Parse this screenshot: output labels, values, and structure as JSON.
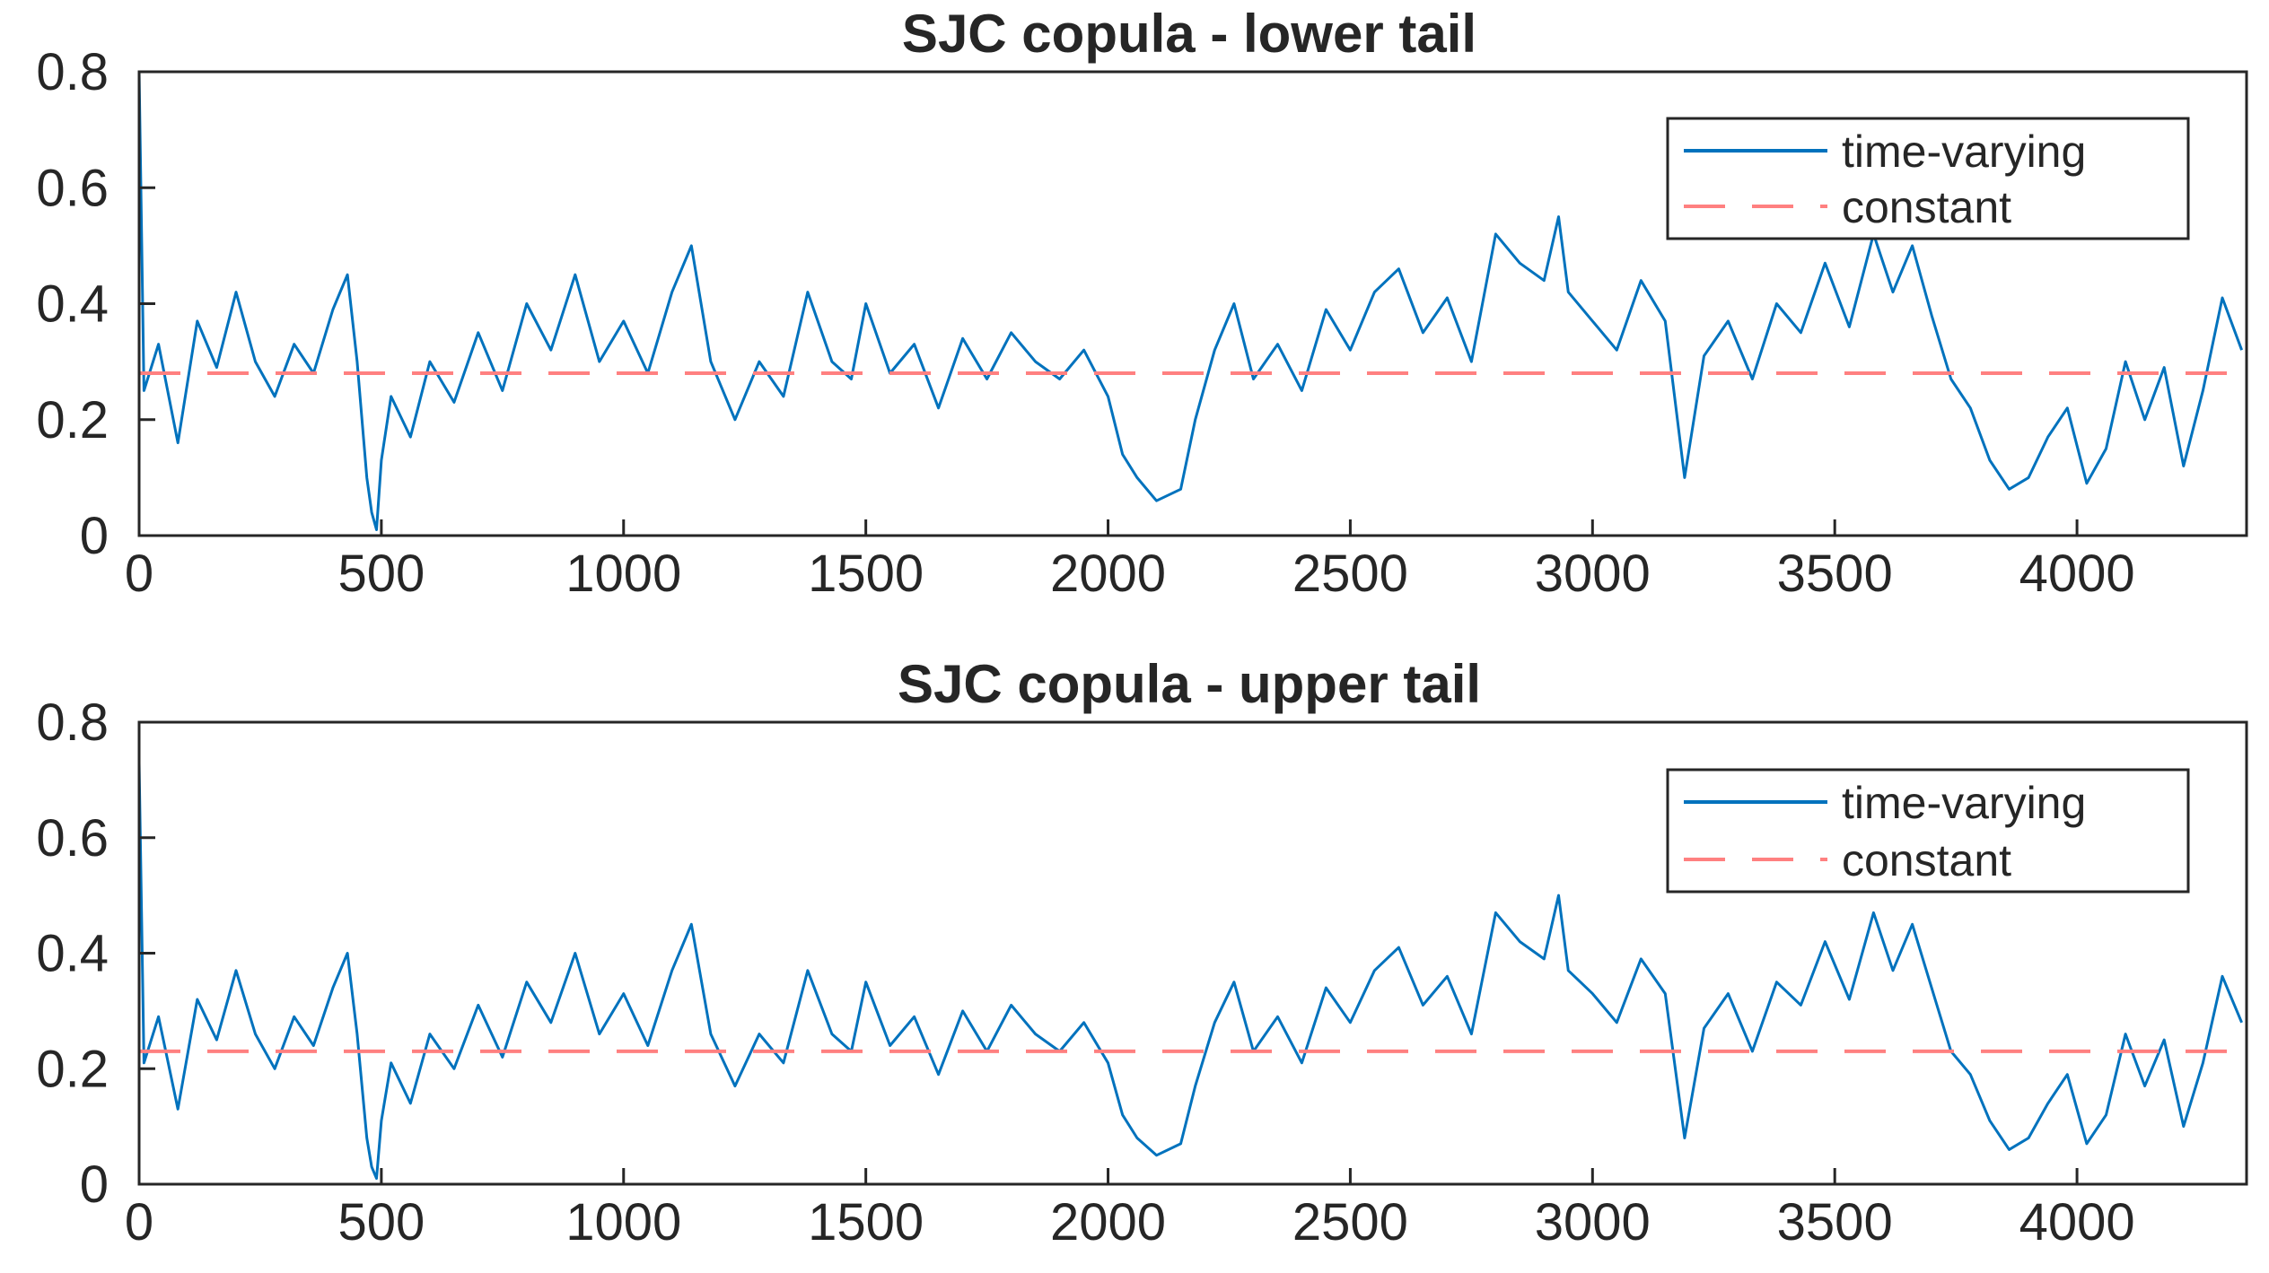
{
  "chart_data": [
    {
      "type": "line",
      "title": "SJC copula - lower tail",
      "xlabel": "",
      "ylabel": "",
      "xlim": [
        0,
        4350
      ],
      "ylim": [
        0,
        0.8
      ],
      "xticks": [
        0,
        500,
        1000,
        1500,
        2000,
        2500,
        3000,
        3500,
        4000
      ],
      "xtick_labels": [
        "0",
        "500",
        "1000",
        "1500",
        "2000",
        "2500",
        "3000",
        "3500",
        "4000"
      ],
      "yticks": [
        0,
        0.2,
        0.4,
        0.6,
        0.8
      ],
      "ytick_labels": [
        "0",
        "0.2",
        "0.4",
        "0.6",
        "0.8"
      ],
      "grid": false,
      "legend_position": "top-right",
      "series": [
        {
          "name": "time-varying",
          "color": "#0072BD",
          "style": "solid",
          "x": [
            0,
            10,
            40,
            80,
            120,
            160,
            200,
            240,
            280,
            320,
            360,
            400,
            430,
            450,
            470,
            480,
            490,
            500,
            520,
            560,
            600,
            650,
            700,
            750,
            800,
            850,
            900,
            950,
            1000,
            1050,
            1100,
            1140,
            1180,
            1230,
            1280,
            1330,
            1380,
            1430,
            1470,
            1500,
            1550,
            1600,
            1650,
            1700,
            1750,
            1800,
            1850,
            1900,
            1950,
            2000,
            2030,
            2060,
            2100,
            2150,
            2180,
            2220,
            2260,
            2300,
            2350,
            2400,
            2450,
            2500,
            2550,
            2600,
            2650,
            2700,
            2750,
            2800,
            2850,
            2900,
            2930,
            2950,
            3000,
            3050,
            3100,
            3150,
            3190,
            3230,
            3280,
            3330,
            3380,
            3430,
            3480,
            3530,
            3580,
            3620,
            3660,
            3700,
            3740,
            3780,
            3820,
            3860,
            3900,
            3940,
            3980,
            4020,
            4060,
            4100,
            4140,
            4180,
            4220,
            4260,
            4300,
            4340
          ],
          "y": [
            0.8,
            0.25,
            0.33,
            0.16,
            0.37,
            0.29,
            0.42,
            0.3,
            0.24,
            0.33,
            0.28,
            0.39,
            0.45,
            0.3,
            0.1,
            0.04,
            0.01,
            0.13,
            0.24,
            0.17,
            0.3,
            0.23,
            0.35,
            0.25,
            0.4,
            0.32,
            0.45,
            0.3,
            0.37,
            0.28,
            0.42,
            0.5,
            0.3,
            0.2,
            0.3,
            0.24,
            0.42,
            0.3,
            0.27,
            0.4,
            0.28,
            0.33,
            0.22,
            0.34,
            0.27,
            0.35,
            0.3,
            0.27,
            0.32,
            0.24,
            0.14,
            0.1,
            0.06,
            0.08,
            0.2,
            0.32,
            0.4,
            0.27,
            0.33,
            0.25,
            0.39,
            0.32,
            0.42,
            0.46,
            0.35,
            0.41,
            0.3,
            0.52,
            0.47,
            0.44,
            0.55,
            0.42,
            0.37,
            0.32,
            0.44,
            0.37,
            0.1,
            0.31,
            0.37,
            0.27,
            0.4,
            0.35,
            0.47,
            0.36,
            0.52,
            0.42,
            0.5,
            0.38,
            0.27,
            0.22,
            0.13,
            0.08,
            0.1,
            0.17,
            0.22,
            0.09,
            0.15,
            0.3,
            0.2,
            0.29,
            0.12,
            0.25,
            0.41,
            0.32
          ]
        },
        {
          "name": "constant",
          "color": "#FF8080",
          "style": "dashed",
          "x": [
            0,
            4350
          ],
          "y": [
            0.28,
            0.28
          ]
        }
      ],
      "legend": [
        "time-varying",
        "constant"
      ]
    },
    {
      "type": "line",
      "title": "SJC copula - upper tail",
      "xlabel": "",
      "ylabel": "",
      "xlim": [
        0,
        4350
      ],
      "ylim": [
        0,
        0.8
      ],
      "xticks": [
        0,
        500,
        1000,
        1500,
        2000,
        2500,
        3000,
        3500,
        4000
      ],
      "xtick_labels": [
        "0",
        "500",
        "1000",
        "1500",
        "2000",
        "2500",
        "3000",
        "3500",
        "4000"
      ],
      "yticks": [
        0,
        0.2,
        0.4,
        0.6,
        0.8
      ],
      "ytick_labels": [
        "0",
        "0.2",
        "0.4",
        "0.6",
        "0.8"
      ],
      "grid": false,
      "legend_position": "top-right",
      "series": [
        {
          "name": "time-varying",
          "color": "#0072BD",
          "style": "solid",
          "x": [
            0,
            10,
            40,
            80,
            120,
            160,
            200,
            240,
            280,
            320,
            360,
            400,
            430,
            450,
            470,
            480,
            490,
            500,
            520,
            560,
            600,
            650,
            700,
            750,
            800,
            850,
            900,
            950,
            1000,
            1050,
            1100,
            1140,
            1180,
            1230,
            1280,
            1330,
            1380,
            1430,
            1470,
            1500,
            1550,
            1600,
            1650,
            1700,
            1750,
            1800,
            1850,
            1900,
            1950,
            2000,
            2030,
            2060,
            2100,
            2150,
            2180,
            2220,
            2260,
            2300,
            2350,
            2400,
            2450,
            2500,
            2550,
            2600,
            2650,
            2700,
            2750,
            2800,
            2850,
            2900,
            2930,
            2950,
            3000,
            3050,
            3100,
            3150,
            3190,
            3230,
            3280,
            3330,
            3380,
            3430,
            3480,
            3530,
            3580,
            3620,
            3660,
            3700,
            3740,
            3780,
            3820,
            3860,
            3900,
            3940,
            3980,
            4020,
            4060,
            4100,
            4140,
            4180,
            4220,
            4260,
            4300,
            4340
          ],
          "y": [
            0.73,
            0.21,
            0.29,
            0.13,
            0.32,
            0.25,
            0.37,
            0.26,
            0.2,
            0.29,
            0.24,
            0.34,
            0.4,
            0.26,
            0.08,
            0.03,
            0.01,
            0.11,
            0.21,
            0.14,
            0.26,
            0.2,
            0.31,
            0.22,
            0.35,
            0.28,
            0.4,
            0.26,
            0.33,
            0.24,
            0.37,
            0.45,
            0.26,
            0.17,
            0.26,
            0.21,
            0.37,
            0.26,
            0.23,
            0.35,
            0.24,
            0.29,
            0.19,
            0.3,
            0.23,
            0.31,
            0.26,
            0.23,
            0.28,
            0.21,
            0.12,
            0.08,
            0.05,
            0.07,
            0.17,
            0.28,
            0.35,
            0.23,
            0.29,
            0.21,
            0.34,
            0.28,
            0.37,
            0.41,
            0.31,
            0.36,
            0.26,
            0.47,
            0.42,
            0.39,
            0.5,
            0.37,
            0.33,
            0.28,
            0.39,
            0.33,
            0.08,
            0.27,
            0.33,
            0.23,
            0.35,
            0.31,
            0.42,
            0.32,
            0.47,
            0.37,
            0.45,
            0.34,
            0.23,
            0.19,
            0.11,
            0.06,
            0.08,
            0.14,
            0.19,
            0.07,
            0.12,
            0.26,
            0.17,
            0.25,
            0.1,
            0.21,
            0.36,
            0.28
          ]
        },
        {
          "name": "constant",
          "color": "#FF8080",
          "style": "dashed",
          "x": [
            0,
            4350
          ],
          "y": [
            0.23,
            0.23
          ]
        }
      ],
      "legend": [
        "time-varying",
        "constant"
      ]
    }
  ]
}
